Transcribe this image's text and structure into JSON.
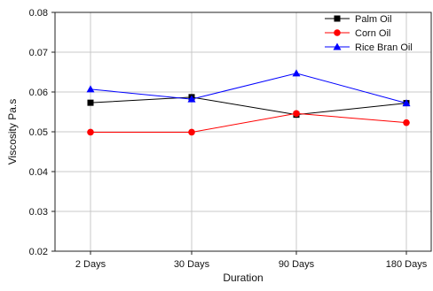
{
  "chart_data": {
    "type": "line",
    "title": "",
    "xlabel": "Duration",
    "ylabel": "Viscosity Pa.s",
    "categories": [
      "2 Days",
      "30 Days",
      "90 Days",
      "180 Days"
    ],
    "ylim": [
      0.02,
      0.08
    ],
    "yticks": [
      "0.02",
      "0.03",
      "0.04",
      "0.05",
      "0.06",
      "0.07",
      "0.08"
    ],
    "grid": true,
    "legend_position": "top-right",
    "series": [
      {
        "name": "Palm Oil",
        "values": [
          0.0573,
          0.0587,
          0.0543,
          0.0572
        ],
        "color": "#000000",
        "marker": "square"
      },
      {
        "name": "Corn Oil",
        "values": [
          0.0499,
          0.0499,
          0.0546,
          0.0523
        ],
        "color": "#ff0000",
        "marker": "circle"
      },
      {
        "name": "Rice Bran Oil",
        "values": [
          0.0607,
          0.0582,
          0.0647,
          0.0572
        ],
        "color": "#0000ff",
        "marker": "triangle"
      }
    ]
  }
}
